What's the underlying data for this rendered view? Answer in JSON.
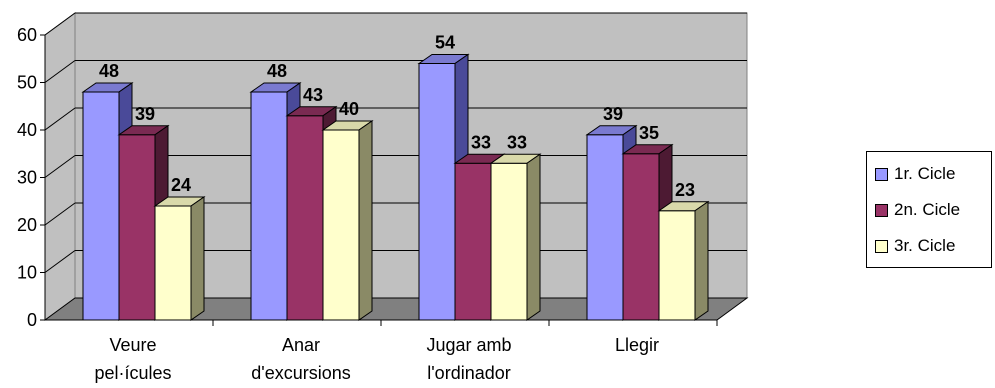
{
  "chart_data": {
    "type": "bar",
    "categories": [
      [
        "Veure",
        "pel·ícules"
      ],
      [
        "Anar",
        "d'excursions"
      ],
      [
        "Jugar amb",
        "l'ordinador"
      ],
      [
        "Llegir"
      ]
    ],
    "series": [
      {
        "name": "1r. Cicle",
        "values": [
          48,
          48,
          54,
          39
        ],
        "color": "#9999ff",
        "side": "#4a4a99",
        "top": "#7a7ad0"
      },
      {
        "name": "2n. Cicle",
        "values": [
          39,
          43,
          33,
          35
        ],
        "color": "#993366",
        "side": "#4d1a33",
        "top": "#7a2a52"
      },
      {
        "name": "3r. Cicle",
        "values": [
          24,
          40,
          33,
          23
        ],
        "color": "#ffffcc",
        "side": "#8a8a66",
        "top": "#d9d9aa"
      }
    ],
    "yticks": [
      0,
      10,
      20,
      30,
      40,
      50,
      60
    ],
    "ylim": [
      0,
      60
    ],
    "grid": true,
    "legend_position": "right",
    "wall_color": "#c0c0c0",
    "floor_color": "#808080"
  }
}
